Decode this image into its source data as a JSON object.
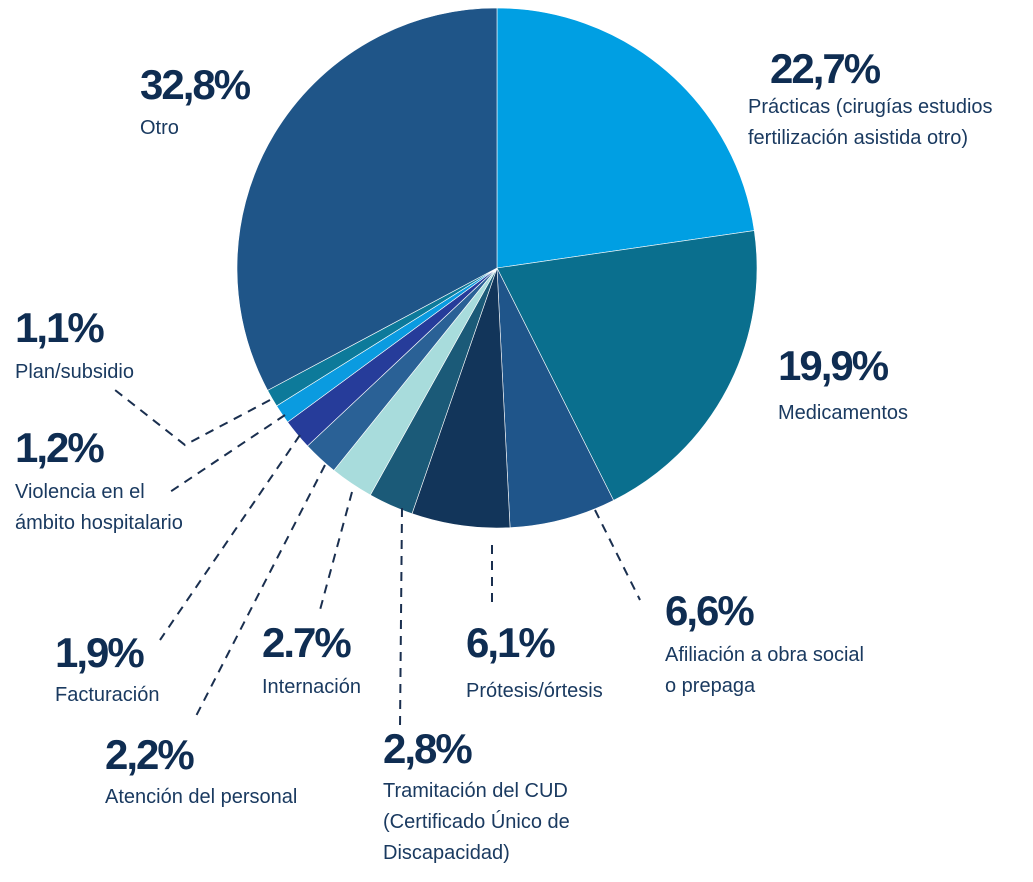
{
  "chart_data": {
    "type": "pie",
    "categories": [
      "Prácticas (cirugías estudios\nfertilización asistida otro)",
      "Medicamentos",
      "Afiliación a obra social\no prepaga",
      "Prótesis/órtesis",
      "Tramitación del CUD\n(Certificado Único de\nDiscapacidad)",
      "Internación",
      "Atención del personal",
      "Facturación",
      "Violencia en el\námbito hospitalario",
      "Plan/subsidio",
      "Otro"
    ],
    "values": [
      22.7,
      19.9,
      6.6,
      6.1,
      2.8,
      2.7,
      2.2,
      1.9,
      1.2,
      1.1,
      32.8
    ],
    "value_labels": [
      "22,7%",
      "19,9%",
      "6,6%",
      "6,1%",
      "2,8%",
      "2.7%",
      "2,2%",
      "1,9%",
      "1,2%",
      "1,1%",
      "32,8%"
    ],
    "colors": [
      "#009fe3",
      "#0a6f8e",
      "#1f558a",
      "#12355a",
      "#1b5a78",
      "#a8dcdc",
      "#2a6196",
      "#263c9a",
      "#0a9be0",
      "#0d7a9a",
      "#1f5588"
    ]
  }
}
